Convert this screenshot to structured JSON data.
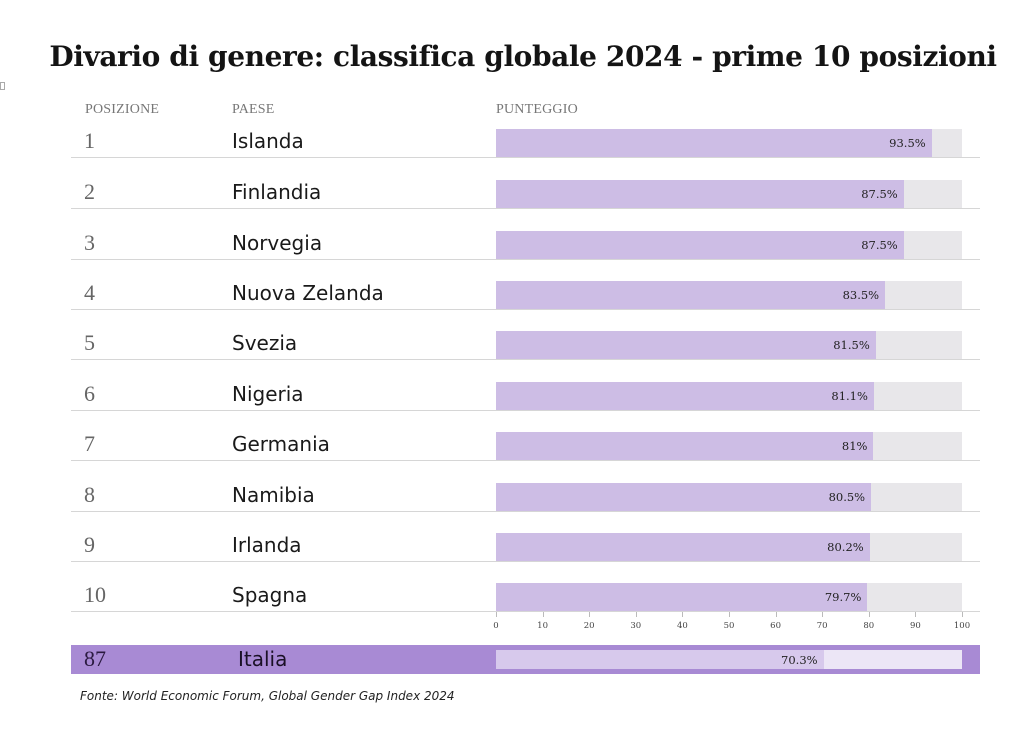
{
  "header": {
    "title": "Divario di genere: classifica globale 2024 - prime 10 posizioni",
    "col_position": "POSIZIONE",
    "col_country": "PAESE",
    "col_score": "PUNTEGGIO"
  },
  "chart_data": {
    "type": "bar",
    "orientation": "horizontal",
    "title": "Divario di genere: classifica globale 2024 - prime 10 posizioni",
    "xlabel": "PUNTEGGIO",
    "xlim": [
      0,
      100
    ],
    "x_ticks": [
      "0",
      "10",
      "20",
      "30",
      "40",
      "50",
      "60",
      "70",
      "80",
      "90",
      "100"
    ],
    "rows": [
      {
        "position": "1",
        "country": "Islanda",
        "value": 93.5,
        "label": "93.5%"
      },
      {
        "position": "2",
        "country": "Finlandia",
        "value": 87.5,
        "label": "87.5%"
      },
      {
        "position": "3",
        "country": "Norvegia",
        "value": 87.5,
        "label": "87.5%"
      },
      {
        "position": "4",
        "country": "Nuova Zelanda",
        "value": 83.5,
        "label": "83.5%"
      },
      {
        "position": "5",
        "country": "Svezia",
        "value": 81.5,
        "label": "81.5%"
      },
      {
        "position": "6",
        "country": "Nigeria",
        "value": 81.1,
        "label": "81.1%"
      },
      {
        "position": "7",
        "country": "Germania",
        "value": 81,
        "label": "81%"
      },
      {
        "position": "8",
        "country": "Namibia",
        "value": 80.5,
        "label": "80.5%"
      },
      {
        "position": "9",
        "country": "Irlanda",
        "value": 80.2,
        "label": "80.2%"
      },
      {
        "position": "10",
        "country": "Spagna",
        "value": 79.7,
        "label": "79.7%"
      }
    ],
    "highlight": {
      "position": "87",
      "country": "Italia",
      "value": 70.3,
      "label": "70.3%"
    },
    "colors": {
      "bar": "#cdbde5",
      "track": "#e8e7ea",
      "highlight_band": "#a88ad4"
    }
  },
  "footer": {
    "source": "Fonte: World Economic Forum, Global Gender Gap Index 2024"
  }
}
